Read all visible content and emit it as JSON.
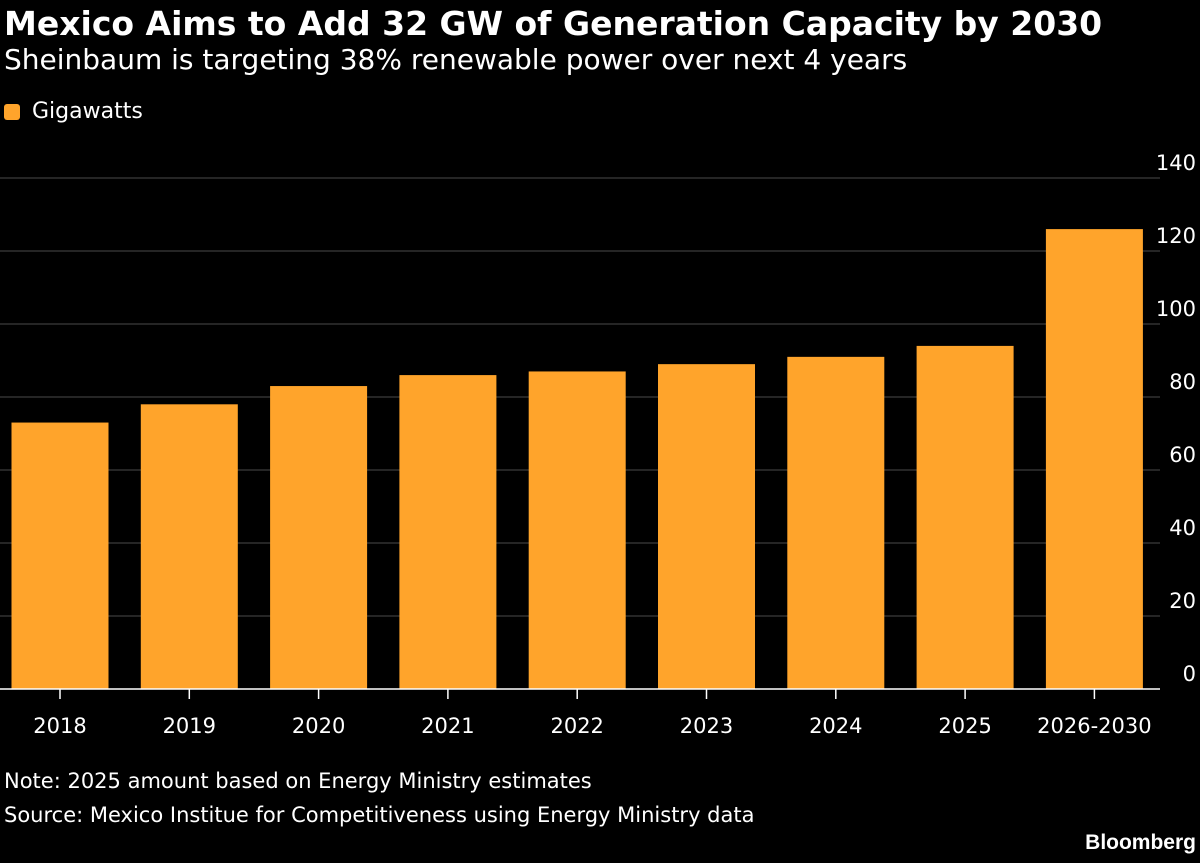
{
  "header": {
    "title": "Mexico Aims to Add 32 GW of Generation Capacity by 2030",
    "subtitle": "Sheinbaum is targeting 38% renewable power over next 4 years"
  },
  "legend": {
    "label": "Gigawatts",
    "color": "#ffa42b"
  },
  "footer": {
    "note": "Note: 2025 amount based on Energy Ministry estimates",
    "source": "Source: Mexico Institue for Competitiveness using Energy Ministry data",
    "brand": "Bloomberg"
  },
  "chart_data": {
    "type": "bar",
    "categories": [
      "2018",
      "2019",
      "2020",
      "2021",
      "2022",
      "2023",
      "2024",
      "2025",
      "2026-2030"
    ],
    "series": [
      {
        "name": "Gigawatts",
        "values": [
          73,
          78,
          83,
          86,
          87,
          89,
          91,
          94,
          126
        ]
      }
    ],
    "ylim": [
      0,
      140
    ],
    "yticks": [
      0,
      20,
      40,
      60,
      80,
      100,
      120,
      140
    ],
    "grid": true,
    "y_axis_side": "right",
    "bar_color": "#ffa42b",
    "grid_color": "#4a4a4a",
    "axis_color": "#ffffff"
  }
}
